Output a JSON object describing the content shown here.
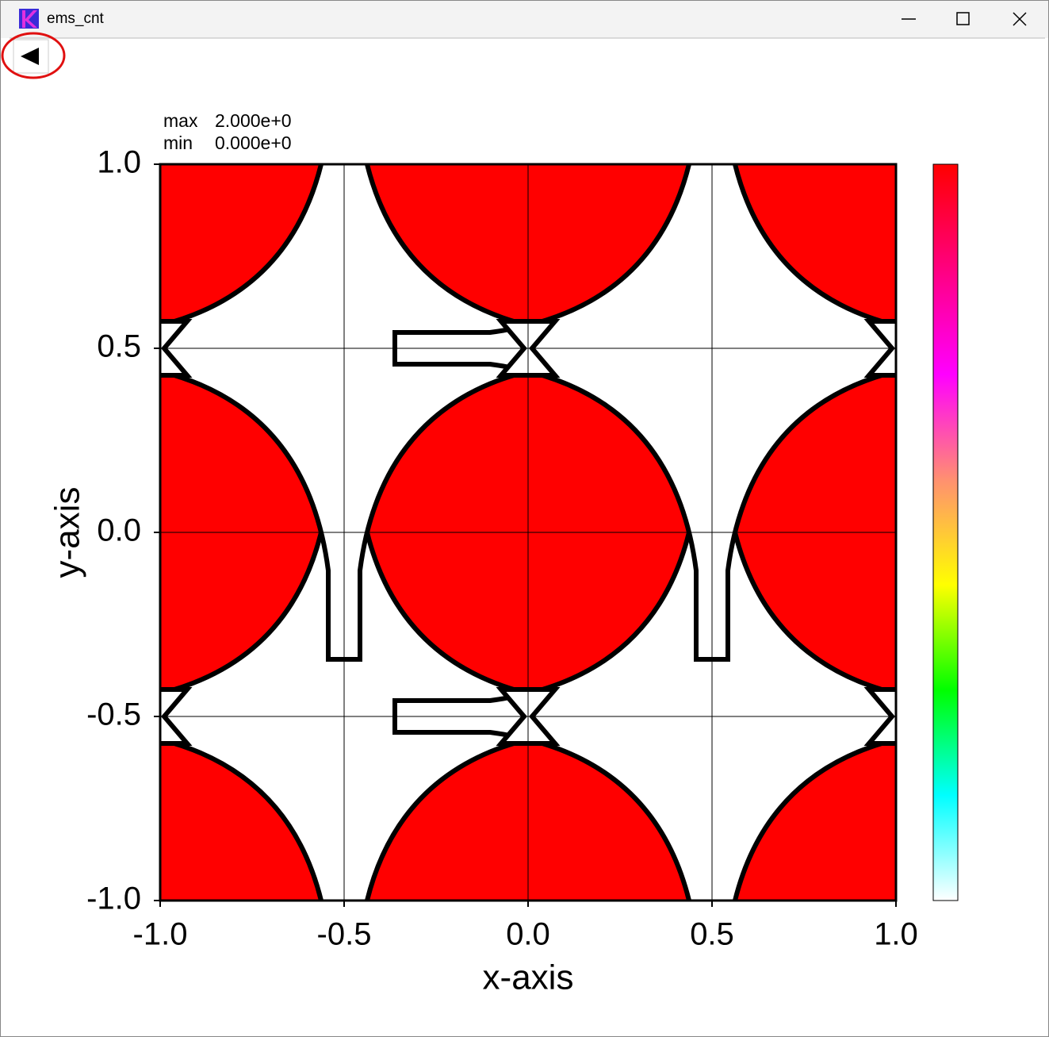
{
  "window": {
    "title": "ems_cnt"
  },
  "chart_data": {
    "type": "contour",
    "xlabel": "x-axis",
    "ylabel": "y-axis",
    "xlim": [
      -1,
      1
    ],
    "ylim": [
      -1,
      1
    ],
    "xticks": [
      {
        "value": -1,
        "label": "-1.0"
      },
      {
        "value": -0.5,
        "label": "-0.5"
      },
      {
        "value": 0,
        "label": "0.0"
      },
      {
        "value": 0.5,
        "label": "0.5"
      },
      {
        "value": 1,
        "label": "1.0"
      }
    ],
    "yticks": [
      {
        "value": -1,
        "label": "-1.0"
      },
      {
        "value": -0.5,
        "label": "-0.5"
      },
      {
        "value": 0,
        "label": "0.0"
      },
      {
        "value": 0.5,
        "label": "0.5"
      },
      {
        "value": 1,
        "label": "1.0"
      }
    ],
    "grid": true,
    "field_color": "#ff0000",
    "colorbar": {
      "max_label": "max",
      "max": {
        "value": 2,
        "label": "2.000e+0"
      },
      "min_label": "min",
      "min": {
        "value": 0,
        "label": "0.000e+0"
      },
      "colors": [
        "#ff0000",
        "#ff0080",
        "#ff00ff",
        "#ff9070",
        "#ffff00",
        "#00ff00",
        "#00ffff",
        "#ffffff"
      ]
    }
  }
}
